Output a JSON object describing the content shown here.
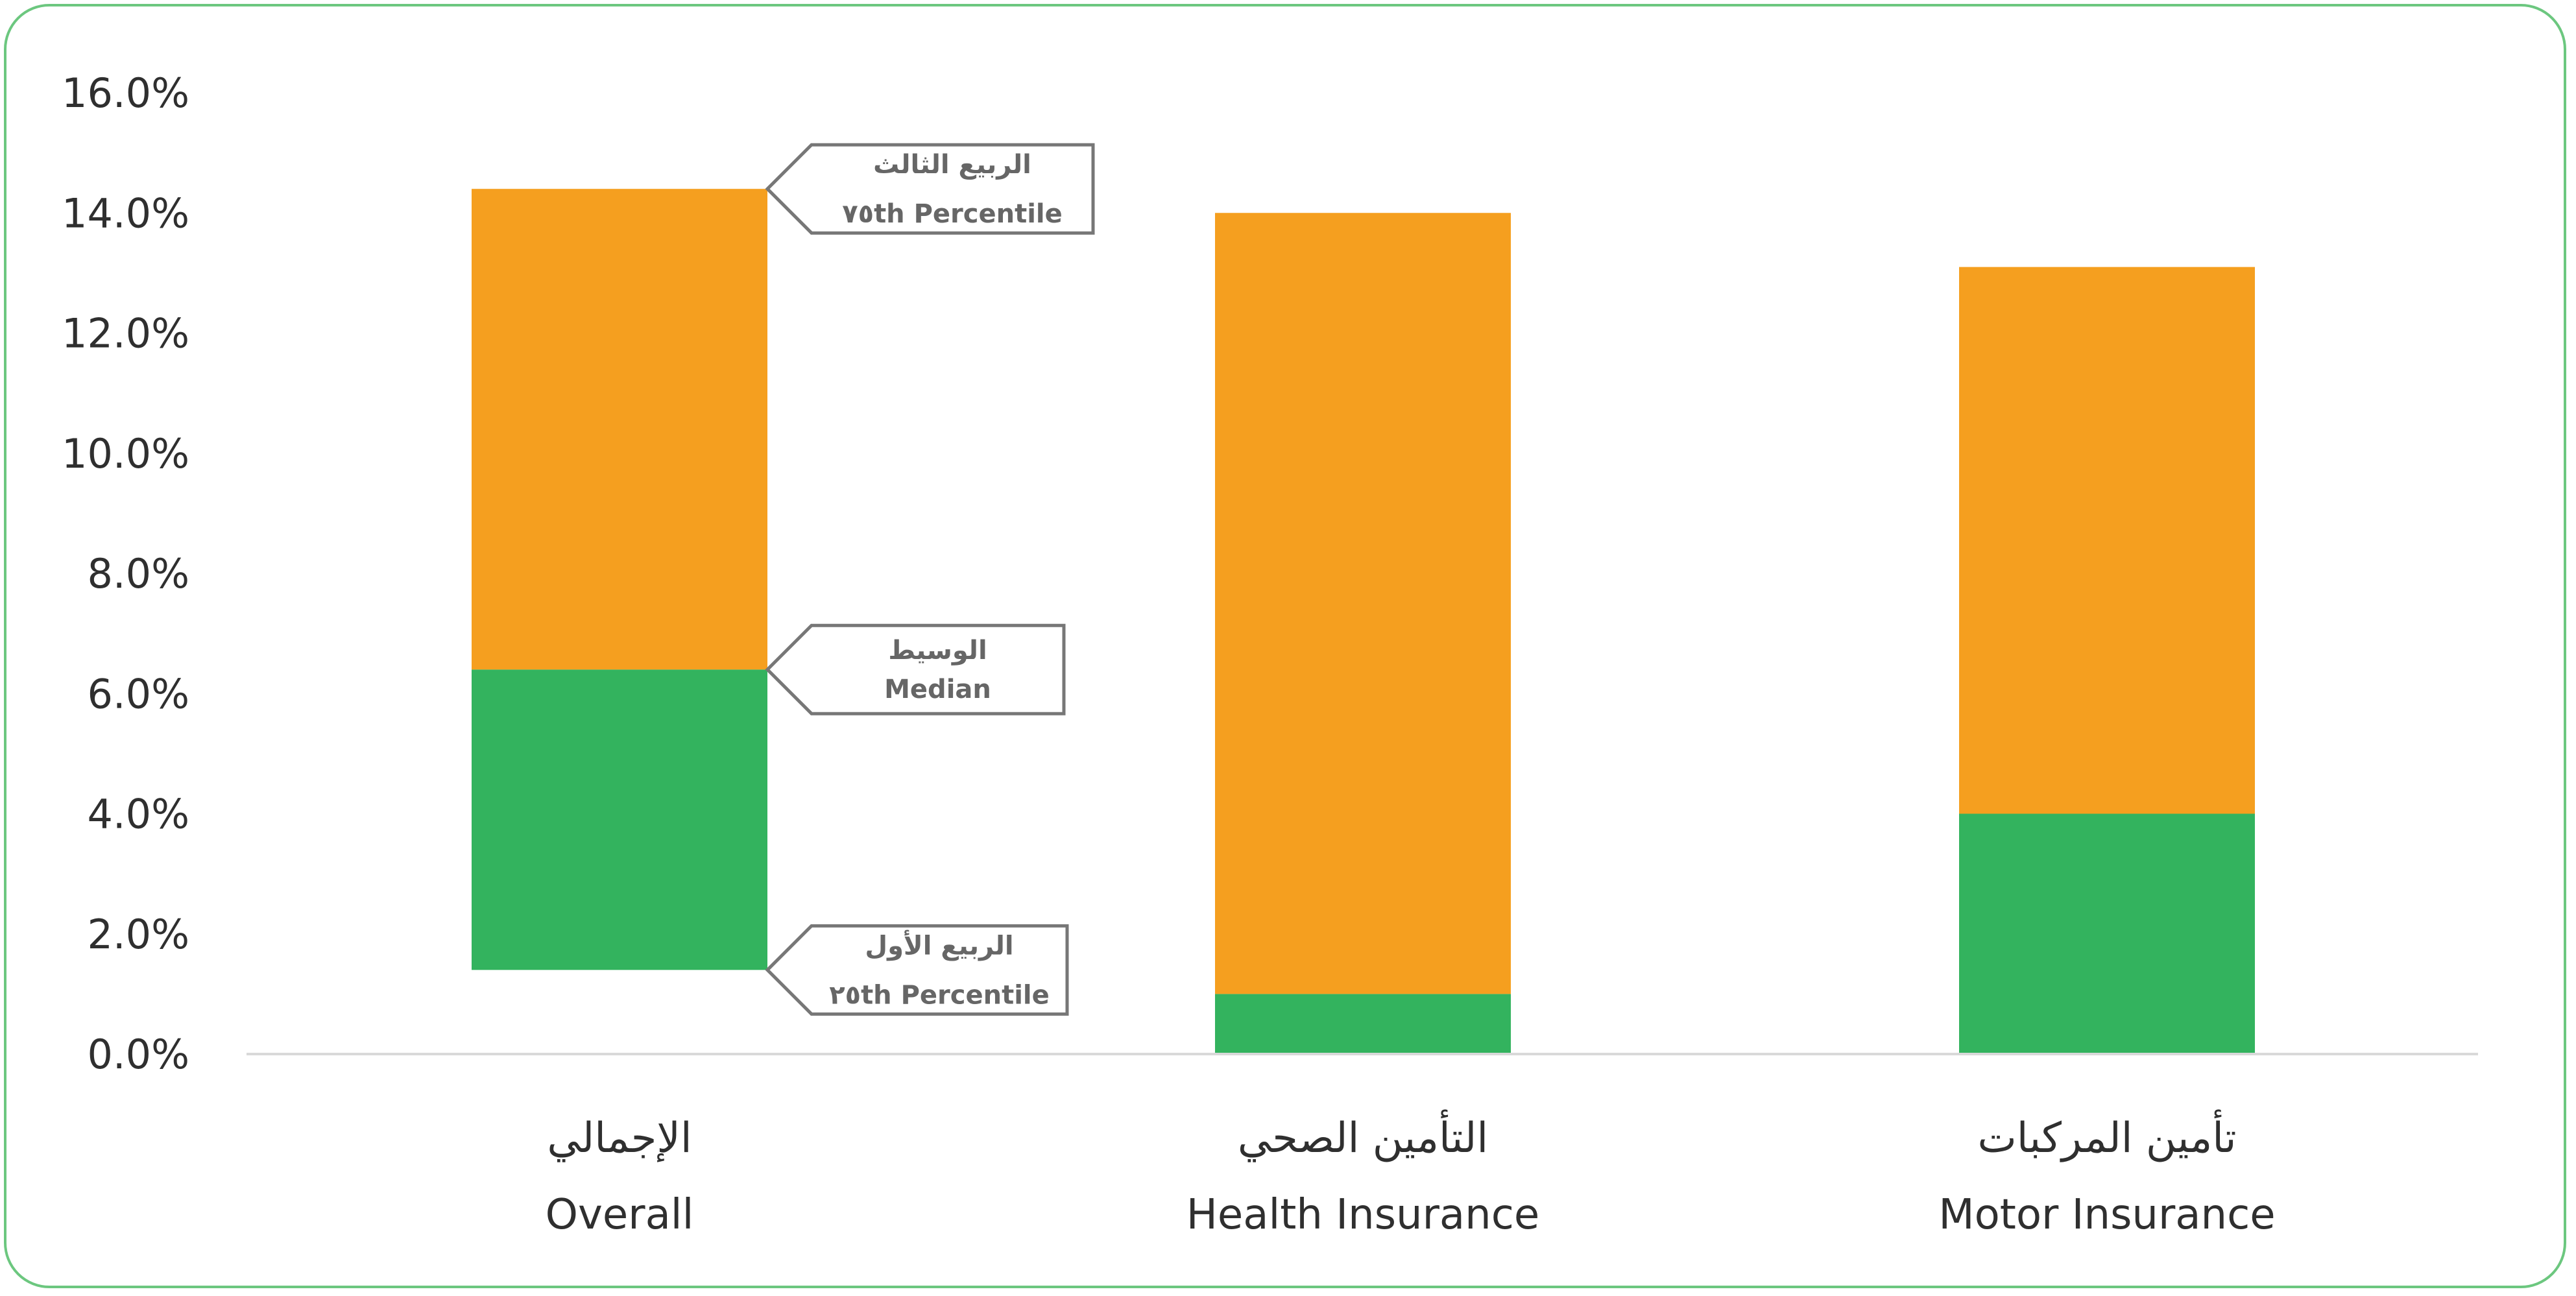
{
  "chart_data": {
    "type": "bar",
    "stacked": true,
    "categories": [
      {
        "ar": "الإجمالي",
        "en": "Overall"
      },
      {
        "ar": "التأمين الصحي",
        "en": "Health Insurance"
      },
      {
        "ar": "تأمين المركبات",
        "en": "Motor Insurance"
      }
    ],
    "quartiles": [
      {
        "p25": 1.4,
        "median": 6.4,
        "p75": 14.4
      },
      {
        "p25": 0.0,
        "median": 1.0,
        "p75": 14.0
      },
      {
        "p25": 0.0,
        "median": 4.0,
        "p75": 13.1
      }
    ],
    "series_colors": {
      "lower": "#33b35e",
      "upper": "#f59f1f"
    },
    "ylim": [
      0,
      16
    ],
    "yticks": [
      "0.0%",
      "2.0%",
      "4.0%",
      "6.0%",
      "8.0%",
      "10.0%",
      "12.0%",
      "14.0%",
      "16.0%"
    ],
    "grid": false,
    "annotations": [
      {
        "ar": "الربيع الثالث",
        "en": "٧٥th Percentile",
        "target": "p75"
      },
      {
        "ar": "الوسيط",
        "en": "Median",
        "target": "median"
      },
      {
        "ar": "الربيع الأول",
        "en": "٢٥th Percentile",
        "target": "p25"
      }
    ]
  }
}
